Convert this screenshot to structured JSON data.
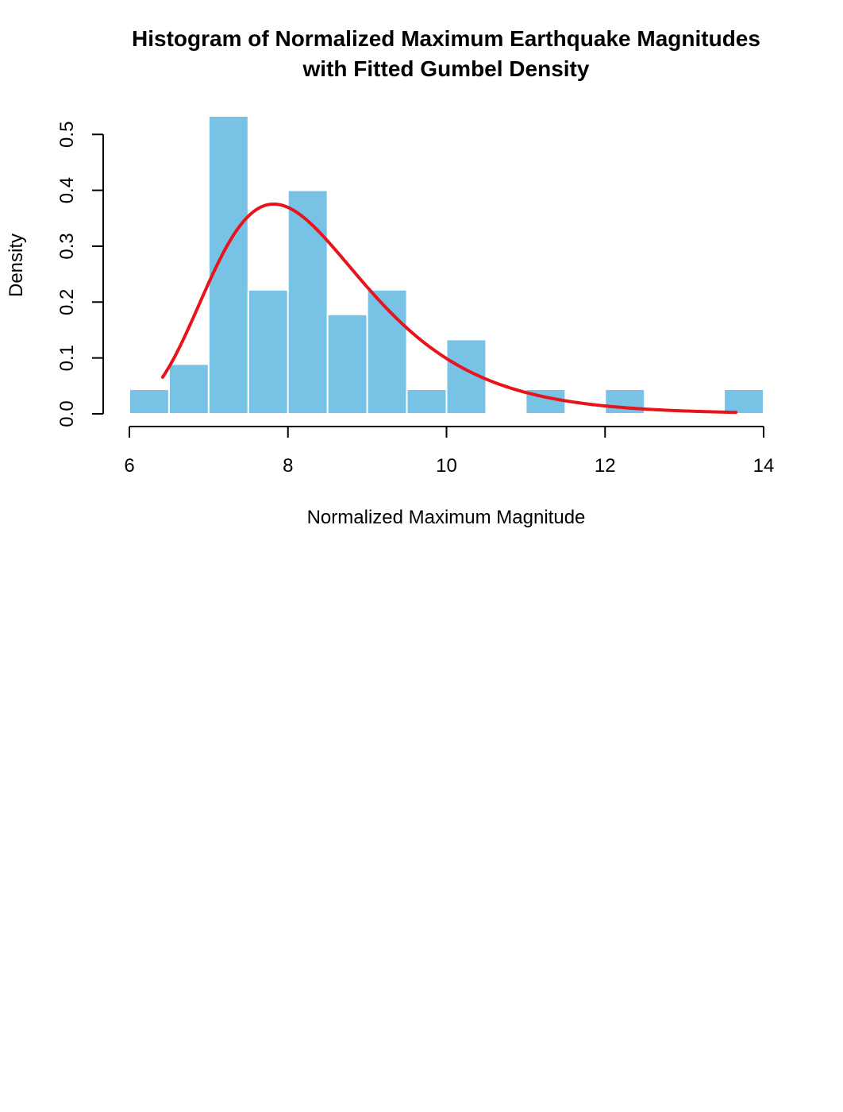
{
  "chart_data": {
    "type": "bar",
    "title": "Histogram of Normalized Maximum Earthquake Magnitudes",
    "subtitle": "with Fitted Gumbel Density",
    "xlabel": "Normalized Maximum Magnitude",
    "ylabel": "Density",
    "xlim": [
      6,
      14
    ],
    "ylim": [
      0,
      0.53
    ],
    "x_ticks": [
      "6",
      "8",
      "10",
      "12",
      "14"
    ],
    "y_ticks": [
      "0.0",
      "0.1",
      "0.2",
      "0.3",
      "0.4",
      "0.5"
    ],
    "bar_color": "#77C2E5",
    "curve_color": "#E8131B",
    "bins": [
      {
        "x0": 6.0,
        "x1": 6.5,
        "density": 0.044
      },
      {
        "x0": 6.5,
        "x1": 7.0,
        "density": 0.089
      },
      {
        "x0": 7.0,
        "x1": 7.5,
        "density": 0.533
      },
      {
        "x0": 7.5,
        "x1": 8.0,
        "density": 0.222
      },
      {
        "x0": 8.0,
        "x1": 8.5,
        "density": 0.4
      },
      {
        "x0": 8.5,
        "x1": 9.0,
        "density": 0.178
      },
      {
        "x0": 9.0,
        "x1": 9.5,
        "density": 0.222
      },
      {
        "x0": 9.5,
        "x1": 10.0,
        "density": 0.044
      },
      {
        "x0": 10.0,
        "x1": 10.5,
        "density": 0.133
      },
      {
        "x0": 10.5,
        "x1": 11.0,
        "density": 0.0
      },
      {
        "x0": 11.0,
        "x1": 11.5,
        "density": 0.044
      },
      {
        "x0": 11.5,
        "x1": 12.0,
        "density": 0.0
      },
      {
        "x0": 12.0,
        "x1": 12.5,
        "density": 0.044
      },
      {
        "x0": 12.5,
        "x1": 13.0,
        "density": 0.0
      },
      {
        "x0": 13.0,
        "x1": 13.5,
        "density": 0.0
      },
      {
        "x0": 13.5,
        "x1": 14.0,
        "density": 0.044
      }
    ],
    "fitted_curve": {
      "distribution": "Gumbel",
      "location": 7.82,
      "scale": 0.98,
      "x_range": [
        6.42,
        13.65
      ]
    }
  }
}
